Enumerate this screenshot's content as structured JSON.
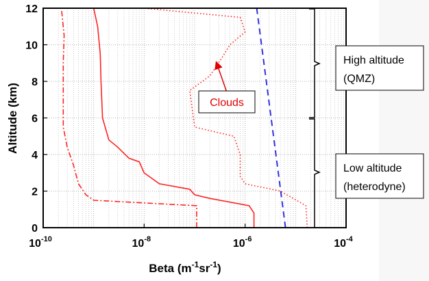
{
  "chart_data": {
    "type": "line",
    "xlabel": {
      "base": "Beta (m",
      "sup1": "-1",
      "mid": "sr",
      "sup2": "-1",
      "end": ")"
    },
    "ylabel": "Altitude (km)",
    "xscale": "log",
    "xlim": [
      1e-10,
      0.0001
    ],
    "ylim": [
      0,
      12
    ],
    "grid": true,
    "xticks": [
      {
        "value": 1e-10,
        "base": "10",
        "exp": "-10"
      },
      {
        "value": 1e-08,
        "base": "10",
        "exp": "-8"
      },
      {
        "value": 1e-06,
        "base": "10",
        "exp": "-6"
      },
      {
        "value": 0.0001,
        "base": "10",
        "exp": "-4"
      }
    ],
    "yticks": [
      "0",
      "2",
      "4",
      "6",
      "8",
      "10",
      "12"
    ],
    "series": [
      {
        "style": "solid",
        "color": "#ff2020",
        "points": [
          [
            1.5e-06,
            0
          ],
          [
            1.5e-06,
            0.8
          ],
          [
            1.2e-06,
            1.2
          ],
          [
            2e-07,
            1.6
          ],
          [
            1e-07,
            1.8
          ],
          [
            8e-08,
            2.1
          ],
          [
            2e-08,
            2.4
          ],
          [
            1e-08,
            3.0
          ],
          [
            8e-09,
            3.6
          ],
          [
            5e-09,
            3.8
          ],
          [
            3e-09,
            4.4
          ],
          [
            2e-09,
            4.8
          ],
          [
            1.5e-09,
            6.0
          ],
          [
            1.4e-09,
            8.0
          ],
          [
            1.35e-09,
            9.5
          ],
          [
            1.2e-09,
            11.0
          ],
          [
            1e-09,
            12.0
          ]
        ]
      },
      {
        "style": "dashdot",
        "color": "#ff2020",
        "points": [
          [
            1.1e-07,
            0
          ],
          [
            1.1e-07,
            1.2
          ],
          [
            1e-09,
            1.5
          ],
          [
            7e-10,
            1.8
          ],
          [
            5e-10,
            2.4
          ],
          [
            4e-10,
            3.4
          ],
          [
            3e-10,
            4.4
          ],
          [
            2.5e-10,
            5.5
          ],
          [
            2.5e-10,
            7.0
          ],
          [
            2.5e-10,
            9.0
          ],
          [
            2.6e-10,
            10.5
          ],
          [
            2.3e-10,
            12.0
          ]
        ]
      },
      {
        "style": "dotted",
        "color": "#ff2020",
        "points": [
          [
            1.7e-05,
            0
          ],
          [
            1.6e-05,
            1.2
          ],
          [
            1.2e-05,
            1.4
          ],
          [
            5e-06,
            2.0
          ],
          [
            1e-06,
            2.4
          ],
          [
            8e-07,
            2.8
          ],
          [
            8e-07,
            4.0
          ],
          [
            6e-07,
            5.0
          ],
          [
            1e-07,
            5.5
          ],
          [
            8e-08,
            7.5
          ],
          [
            2e-07,
            8.3
          ],
          [
            3.5e-07,
            9.3
          ],
          [
            5e-07,
            10.0
          ],
          [
            1e-06,
            10.7
          ],
          [
            8e-07,
            11.5
          ],
          [
            1e-08,
            12.0
          ]
        ]
      },
      {
        "style": "dashed",
        "color": "#3030e0",
        "points": [
          [
            6.3e-06,
            0
          ],
          [
            1.7e-06,
            12.0
          ]
        ]
      }
    ],
    "annotations": {
      "clouds": "Clouds",
      "high_altitude": [
        "High altitude",
        "(QMZ)"
      ],
      "low_altitude": [
        "Low altitude",
        "(heterodyne)"
      ]
    }
  }
}
